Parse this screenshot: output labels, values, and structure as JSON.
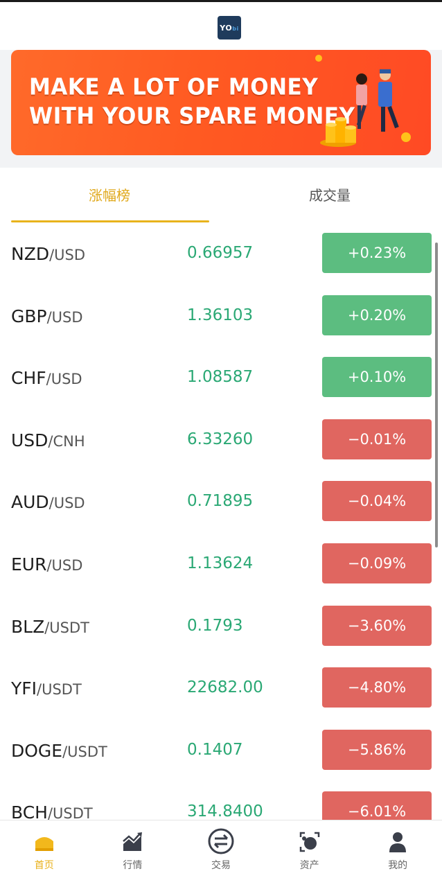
{
  "header": {
    "logo_text": "YO",
    "logo_sub": "bi"
  },
  "banner": {
    "line1": "MAKE A LOT OF MONEY",
    "line2": "WITH YOUR SPARE MONEY"
  },
  "tabs": [
    {
      "label": "涨幅榜",
      "active": true
    },
    {
      "label": "成交量",
      "active": false
    }
  ],
  "colors": {
    "accent": "#e8b31c",
    "up": "#5cbd80",
    "down": "#e06660",
    "price": "#2aa874"
  },
  "rows": [
    {
      "base": "NZD",
      "quote": "/USD",
      "price": "0.66957",
      "change": "+0.23%",
      "dir": "up"
    },
    {
      "base": "GBP",
      "quote": "/USD",
      "price": "1.36103",
      "change": "+0.20%",
      "dir": "up"
    },
    {
      "base": "CHF",
      "quote": "/USD",
      "price": "1.08587",
      "change": "+0.10%",
      "dir": "up"
    },
    {
      "base": "USD",
      "quote": "/CNH",
      "price": "6.33260",
      "change": "−0.01%",
      "dir": "down"
    },
    {
      "base": "AUD",
      "quote": "/USD",
      "price": "0.71895",
      "change": "−0.04%",
      "dir": "down"
    },
    {
      "base": "EUR",
      "quote": "/USD",
      "price": "1.13624",
      "change": "−0.09%",
      "dir": "down"
    },
    {
      "base": "BLZ",
      "quote": "/USDT",
      "price": "0.1793",
      "change": "−3.60%",
      "dir": "down"
    },
    {
      "base": "YFI",
      "quote": "/USDT",
      "price": "22682.00",
      "change": "−4.80%",
      "dir": "down"
    },
    {
      "base": "DOGE",
      "quote": "/USDT",
      "price": "0.1407",
      "change": "−5.86%",
      "dir": "down"
    },
    {
      "base": "BCH",
      "quote": "/USDT",
      "price": "314.8400",
      "change": "−6.01%",
      "dir": "down"
    }
  ],
  "nav": [
    {
      "label": "首页",
      "icon": "home-icon",
      "active": true
    },
    {
      "label": "行情",
      "icon": "chart-icon",
      "active": false
    },
    {
      "label": "交易",
      "icon": "exchange-icon",
      "active": false
    },
    {
      "label": "资产",
      "icon": "wallet-icon",
      "active": false
    },
    {
      "label": "我的",
      "icon": "user-icon",
      "active": false
    }
  ]
}
